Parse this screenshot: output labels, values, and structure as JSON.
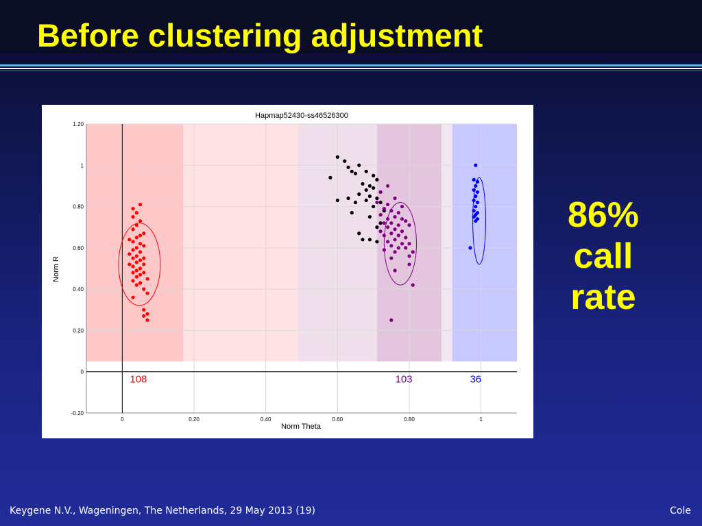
{
  "slide": {
    "title": "Before clustering adjustment",
    "callout_lines": [
      "86%",
      "call",
      "rate"
    ],
    "footer_left": "Keygene N.V., Wageningen, The Netherlands, 29 May 2013 (19)",
    "footer_right": "Cole"
  },
  "colors": {
    "title": "#ffff00",
    "cluster_aa": "#ff0000",
    "cluster_ab": "#800080",
    "cluster_bb": "#0000ff",
    "nocall": "#000000"
  },
  "chart_data": {
    "type": "scatter",
    "title": "Hapmap52430-ss46526300",
    "xlabel": "Norm Theta",
    "ylabel": "Norm R",
    "xlim": [
      -0.1,
      1.1
    ],
    "ylim": [
      -0.2,
      1.2
    ],
    "x_ticks": [
      0,
      0.2,
      0.4,
      0.6,
      0.8,
      1
    ],
    "x_tick_labels": [
      "0",
      "0.20",
      "0.40",
      "0.60",
      "0.80",
      "1"
    ],
    "y_ticks": [
      -0.2,
      0,
      0.2,
      0.4,
      0.6,
      0.8,
      1,
      1.2
    ],
    "y_tick_labels": [
      "-0.20",
      "0",
      "0.20",
      "0.40",
      "0.60",
      "0.80",
      "1",
      "1.20"
    ],
    "grid": true,
    "regions": [
      {
        "x": [
          -0.1,
          0.17
        ],
        "color": "#ffc8c8"
      },
      {
        "x": [
          0.17,
          0.49
        ],
        "color": "#ffe2e4"
      },
      {
        "x": [
          0.49,
          0.71
        ],
        "color": "#efe0ec"
      },
      {
        "x": [
          0.71,
          0.89
        ],
        "color": "#e3c6de"
      },
      {
        "x": [
          0.89,
          0.92
        ],
        "color": "#f1e6f2"
      },
      {
        "x": [
          0.92,
          1.1
        ],
        "color": "#c6c8ff"
      }
    ],
    "clusters": [
      {
        "count": "108",
        "count_x": 0.045,
        "color": "#ff0000",
        "ellipse": {
          "cx": 0.048,
          "cy": 0.52,
          "rx": 0.058,
          "ry": 0.2
        }
      },
      {
        "count": "103",
        "count_x": 0.785,
        "color": "#800080",
        "ellipse": {
          "cx": 0.775,
          "cy": 0.62,
          "rx": 0.045,
          "ry": 0.2
        }
      },
      {
        "count": "36",
        "count_x": 0.985,
        "color": "#0000ff",
        "ellipse": {
          "cx": 0.995,
          "cy": 0.73,
          "rx": 0.018,
          "ry": 0.21
        }
      }
    ],
    "series": [
      {
        "color": "#000000",
        "points": [
          [
            0.6,
            1.04
          ],
          [
            0.62,
            1.02
          ],
          [
            0.63,
            0.99
          ],
          [
            0.66,
            1.0
          ],
          [
            0.64,
            0.97
          ],
          [
            0.68,
            0.97
          ],
          [
            0.65,
            0.96
          ],
          [
            0.7,
            0.95
          ],
          [
            0.58,
            0.94
          ],
          [
            0.71,
            0.93
          ],
          [
            0.67,
            0.91
          ],
          [
            0.69,
            0.9
          ],
          [
            0.7,
            0.89
          ],
          [
            0.68,
            0.88
          ],
          [
            0.72,
            0.87
          ],
          [
            0.66,
            0.86
          ],
          [
            0.69,
            0.85
          ],
          [
            0.71,
            0.84
          ],
          [
            0.63,
            0.84
          ],
          [
            0.6,
            0.83
          ],
          [
            0.68,
            0.83
          ],
          [
            0.72,
            0.82
          ],
          [
            0.65,
            0.82
          ],
          [
            0.7,
            0.8
          ],
          [
            0.73,
            0.78
          ],
          [
            0.64,
            0.77
          ],
          [
            0.69,
            0.75
          ],
          [
            0.72,
            0.72
          ],
          [
            0.71,
            0.7
          ],
          [
            0.66,
            0.67
          ],
          [
            0.67,
            0.64
          ],
          [
            0.69,
            0.64
          ],
          [
            0.71,
            0.63
          ]
        ]
      },
      {
        "color": "#ff0000",
        "points": [
          [
            0.05,
            0.81
          ],
          [
            0.03,
            0.79
          ],
          [
            0.04,
            0.77
          ],
          [
            0.03,
            0.75
          ],
          [
            0.05,
            0.73
          ],
          [
            0.04,
            0.71
          ],
          [
            0.03,
            0.69
          ],
          [
            0.06,
            0.67
          ],
          [
            0.05,
            0.66
          ],
          [
            0.04,
            0.65
          ],
          [
            0.02,
            0.64
          ],
          [
            0.03,
            0.63
          ],
          [
            0.05,
            0.62
          ],
          [
            0.06,
            0.61
          ],
          [
            0.04,
            0.6
          ],
          [
            0.03,
            0.59
          ],
          [
            0.05,
            0.58
          ],
          [
            0.02,
            0.57
          ],
          [
            0.04,
            0.56
          ],
          [
            0.06,
            0.55
          ],
          [
            0.03,
            0.55
          ],
          [
            0.05,
            0.54
          ],
          [
            0.04,
            0.53
          ],
          [
            0.02,
            0.52
          ],
          [
            0.06,
            0.52
          ],
          [
            0.03,
            0.51
          ],
          [
            0.05,
            0.5
          ],
          [
            0.04,
            0.49
          ],
          [
            0.06,
            0.48
          ],
          [
            0.03,
            0.48
          ],
          [
            0.05,
            0.47
          ],
          [
            0.04,
            0.46
          ],
          [
            0.07,
            0.45
          ],
          [
            0.03,
            0.44
          ],
          [
            0.05,
            0.43
          ],
          [
            0.04,
            0.42
          ],
          [
            0.06,
            0.4
          ],
          [
            0.07,
            0.38
          ],
          [
            0.03,
            0.36
          ],
          [
            0.06,
            0.3
          ],
          [
            0.07,
            0.28
          ],
          [
            0.06,
            0.27
          ],
          [
            0.07,
            0.25
          ]
        ]
      },
      {
        "color": "#800080",
        "points": [
          [
            0.74,
            0.9
          ],
          [
            0.72,
            0.87
          ],
          [
            0.76,
            0.84
          ],
          [
            0.71,
            0.82
          ],
          [
            0.74,
            0.81
          ],
          [
            0.73,
            0.79
          ],
          [
            0.78,
            0.8
          ],
          [
            0.75,
            0.78
          ],
          [
            0.77,
            0.77
          ],
          [
            0.72,
            0.76
          ],
          [
            0.76,
            0.75
          ],
          [
            0.74,
            0.74
          ],
          [
            0.78,
            0.74
          ],
          [
            0.79,
            0.73
          ],
          [
            0.73,
            0.72
          ],
          [
            0.75,
            0.72
          ],
          [
            0.77,
            0.71
          ],
          [
            0.8,
            0.71
          ],
          [
            0.74,
            0.7
          ],
          [
            0.76,
            0.69
          ],
          [
            0.72,
            0.68
          ],
          [
            0.78,
            0.68
          ],
          [
            0.75,
            0.67
          ],
          [
            0.77,
            0.66
          ],
          [
            0.73,
            0.66
          ],
          [
            0.79,
            0.65
          ],
          [
            0.76,
            0.64
          ],
          [
            0.74,
            0.63
          ],
          [
            0.78,
            0.62
          ],
          [
            0.8,
            0.62
          ],
          [
            0.75,
            0.61
          ],
          [
            0.77,
            0.6
          ],
          [
            0.79,
            0.6
          ],
          [
            0.73,
            0.59
          ],
          [
            0.76,
            0.58
          ],
          [
            0.81,
            0.58
          ],
          [
            0.8,
            0.56
          ],
          [
            0.75,
            0.55
          ],
          [
            0.8,
            0.52
          ],
          [
            0.76,
            0.49
          ],
          [
            0.81,
            0.42
          ],
          [
            0.75,
            0.25
          ]
        ]
      },
      {
        "color": "#0000ff",
        "points": [
          [
            0.985,
            1.0
          ],
          [
            0.98,
            0.93
          ],
          [
            0.99,
            0.92
          ],
          [
            0.985,
            0.9
          ],
          [
            0.98,
            0.88
          ],
          [
            0.99,
            0.87
          ],
          [
            0.985,
            0.85
          ],
          [
            0.98,
            0.83
          ],
          [
            0.99,
            0.82
          ],
          [
            0.985,
            0.8
          ],
          [
            0.98,
            0.78
          ],
          [
            0.99,
            0.77
          ],
          [
            0.985,
            0.76
          ],
          [
            0.98,
            0.75
          ],
          [
            0.99,
            0.74
          ],
          [
            0.985,
            0.73
          ],
          [
            0.97,
            0.6
          ]
        ]
      }
    ]
  }
}
